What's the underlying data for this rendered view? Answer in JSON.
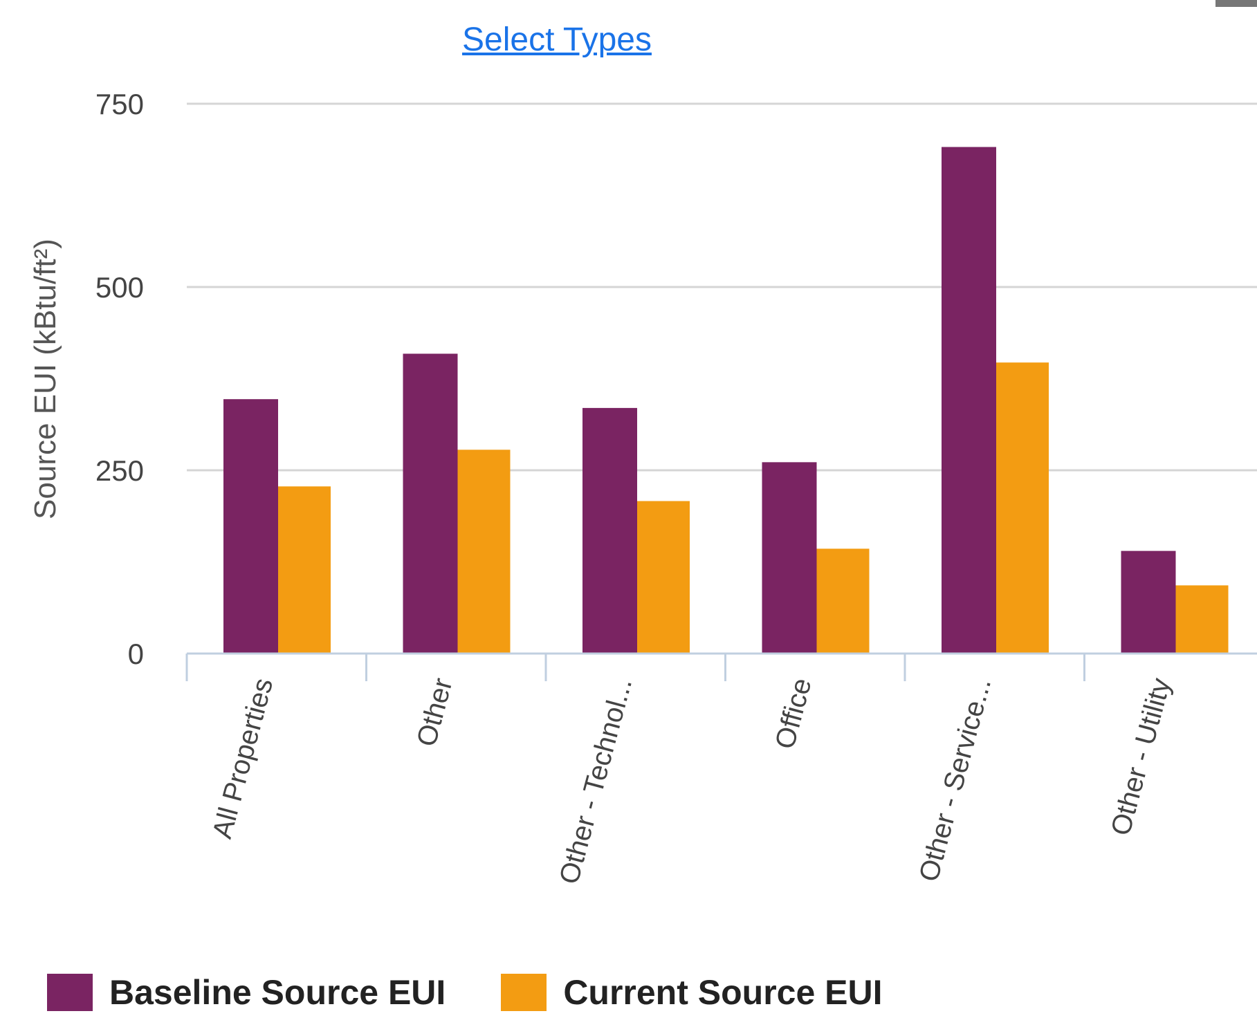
{
  "header": {
    "select_types_label": "Select Types"
  },
  "colors": {
    "baseline": "#7a2462",
    "current": "#f39c12",
    "grid": "#d5d5d5",
    "axis": "#c0cfe0",
    "tick_label": "#444444"
  },
  "chart_data": {
    "type": "bar",
    "title": "",
    "xlabel": "",
    "ylabel": "Source EUI (kBtu/ft²)",
    "ylim": [
      0,
      750
    ],
    "yticks": [
      0,
      250,
      500,
      750
    ],
    "grid": true,
    "legend_position": "bottom",
    "categories": [
      "All Properties",
      "Other",
      "Other - Technol...",
      "Office",
      "Other - Service...",
      "Other - Utility"
    ],
    "series": [
      {
        "name": "Baseline Source EUI",
        "values": [
          347,
          409,
          335,
          261,
          691,
          140
        ]
      },
      {
        "name": "Current Source EUI",
        "values": [
          228,
          278,
          208,
          143,
          397,
          93
        ]
      }
    ]
  }
}
